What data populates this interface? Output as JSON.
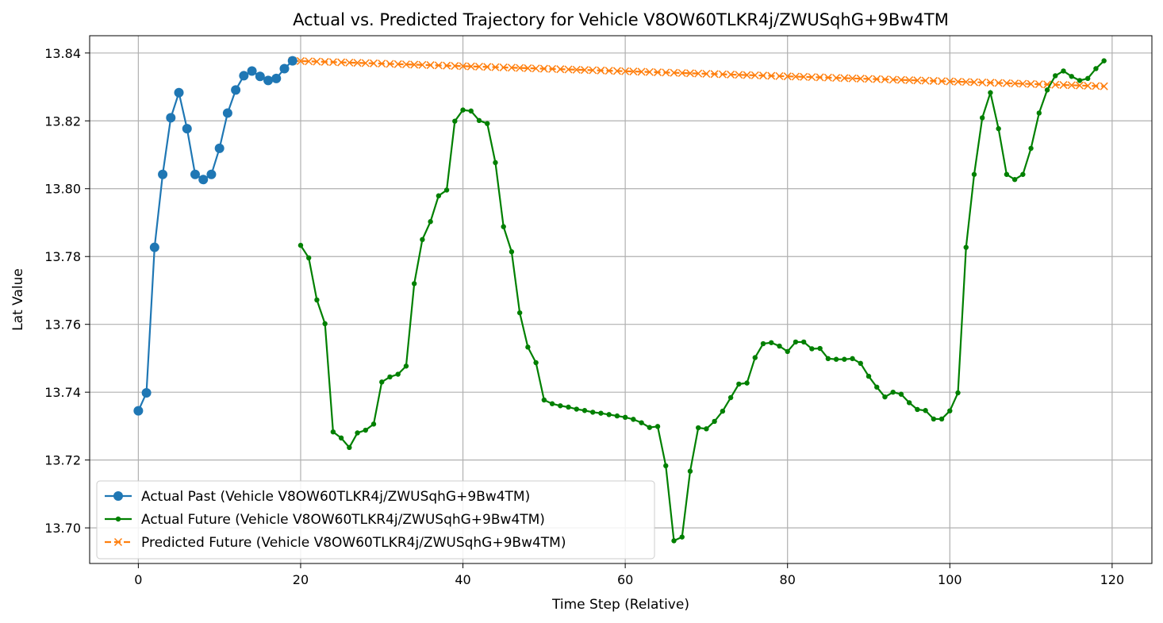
{
  "chart_data": {
    "type": "line",
    "title": "Actual vs. Predicted Trajectory for Vehicle V8OW60TLKR4j/ZWUSqhG+9Bw4TM",
    "xlabel": "Time Step (Relative)",
    "ylabel": "Lat Value",
    "xlim": [
      -6,
      124.9
    ],
    "ylim": [
      13.6895,
      13.8451
    ],
    "xticks": [
      0,
      20,
      40,
      60,
      80,
      100,
      120
    ],
    "yticks": [
      13.7,
      13.72,
      13.74,
      13.76,
      13.78,
      13.8,
      13.82,
      13.84
    ],
    "xtick_labels": [
      "0",
      "20",
      "40",
      "60",
      "80",
      "100",
      "120"
    ],
    "ytick_labels": [
      "13.70",
      "13.72",
      "13.74",
      "13.76",
      "13.78",
      "13.80",
      "13.82",
      "13.84"
    ],
    "grid": true,
    "legend_position": "lower-left",
    "series": [
      {
        "name": "Actual Past (Vehicle V8OW60TLKR4j/ZWUSqhG+9Bw4TM)",
        "color": "#1f77b4",
        "marker": "circle-large",
        "linestyle": "solid",
        "x_start": 0,
        "values": [
          13.7345,
          13.7398,
          13.7827,
          13.8042,
          13.8209,
          13.8283,
          13.8177,
          13.8042,
          13.8027,
          13.8042,
          13.8119,
          13.8223,
          13.8291,
          13.8333,
          13.8347,
          13.8331,
          13.8319,
          13.8325,
          13.8354,
          13.8377
        ]
      },
      {
        "name": "Actual Future (Vehicle V8OW60TLKR4j/ZWUSqhG+9Bw4TM)",
        "color": "#008000",
        "marker": "circle-small",
        "linestyle": "solid",
        "x_start": 20,
        "values": [
          13.7833,
          13.7796,
          13.7672,
          13.7602,
          13.7283,
          13.7265,
          13.7237,
          13.728,
          13.7288,
          13.7306,
          13.743,
          13.7445,
          13.7453,
          13.7477,
          13.772,
          13.785,
          13.7903,
          13.7979,
          13.7996,
          13.8199,
          13.8232,
          13.8229,
          13.8201,
          13.8192,
          13.8077,
          13.7888,
          13.7814,
          13.7634,
          13.7533,
          13.7487,
          13.7377,
          13.7366,
          13.736,
          13.7356,
          13.735,
          13.7346,
          13.7341,
          13.7338,
          13.7334,
          13.733,
          13.7326,
          13.732,
          13.731,
          13.7296,
          13.7299,
          13.7183,
          13.6962,
          13.6973,
          13.7167,
          13.7295,
          13.7292,
          13.7314,
          13.7344,
          13.7384,
          13.7424,
          13.7427,
          13.7502,
          13.7543,
          13.7546,
          13.7536,
          13.752,
          13.7548,
          13.7548,
          13.7528,
          13.7529,
          13.7499,
          13.7497,
          13.7497,
          13.7499,
          13.7485,
          13.7447,
          13.7415,
          13.7386,
          13.74,
          13.7394,
          13.7369,
          13.7349,
          13.7346,
          13.7321,
          13.7321,
          13.7345,
          13.7398,
          13.7827,
          13.8042,
          13.8209,
          13.8283,
          13.8177,
          13.8042,
          13.8027,
          13.8042,
          13.8119,
          13.8223,
          13.8291,
          13.8333,
          13.8347,
          13.8331,
          13.8319,
          13.8325,
          13.8354,
          13.8377
        ]
      },
      {
        "name": "Predicted Future (Vehicle V8OW60TLKR4j/ZWUSqhG+9Bw4TM)",
        "color": "#ff7f0e",
        "marker": "x",
        "linestyle": "dashed",
        "x_start": 19,
        "x_end": 119,
        "y_start": 13.8377,
        "y_end": 13.8302,
        "count": 101
      }
    ]
  }
}
